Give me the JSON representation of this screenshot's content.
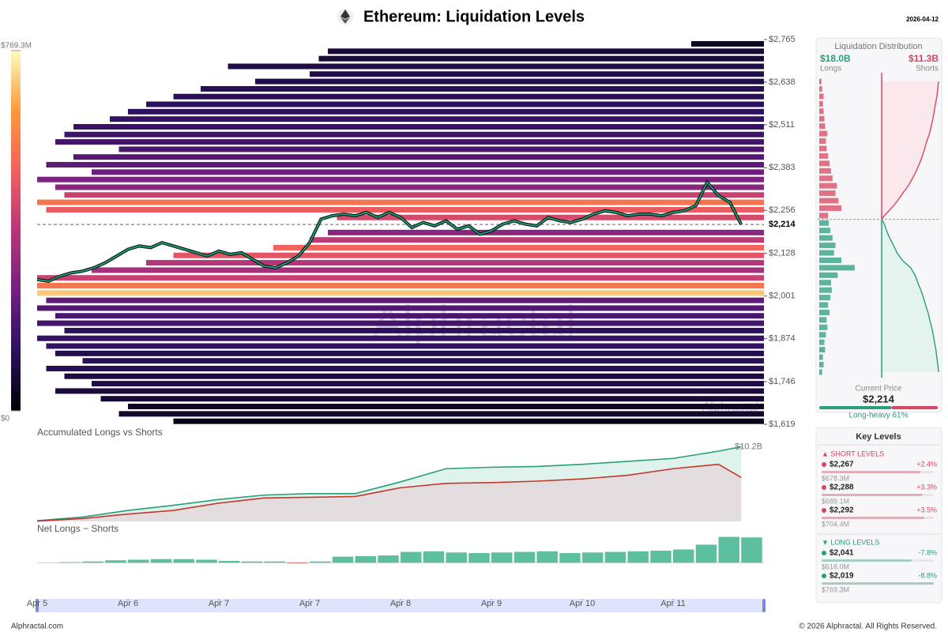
{
  "chart_data": [
    {
      "type": "heatmap",
      "title": "Ethereum: Liquidation Levels",
      "date": "2026-04-12",
      "watermark": "Alphractal",
      "xlim": [
        0,
        8
      ],
      "xticks": [
        {
          "value": 0,
          "label": "Apr 5"
        },
        {
          "value": 1,
          "label": "Apr 6"
        },
        {
          "value": 2,
          "label": "Apr 7"
        },
        {
          "value": 3,
          "label": "Apr 7"
        },
        {
          "value": 4,
          "label": "Apr 8"
        },
        {
          "value": 5,
          "label": "Apr 9"
        },
        {
          "value": 6,
          "label": "Apr 10"
        },
        {
          "value": 7,
          "label": "Apr 11"
        }
      ],
      "ylim": [
        1619,
        2765
      ],
      "yticks": [
        {
          "value": 2765,
          "label": "$2,765"
        },
        {
          "value": 2638,
          "label": "$2,638"
        },
        {
          "value": 2511,
          "label": "$2,511"
        },
        {
          "value": 2383,
          "label": "$2,383"
        },
        {
          "value": 2256,
          "label": "$2,256"
        },
        {
          "value": 2128,
          "label": "$2,128"
        },
        {
          "value": 2001,
          "label": "$2,001"
        },
        {
          "value": 1874,
          "label": "$1,874"
        },
        {
          "value": 1746,
          "label": "$1,746"
        },
        {
          "value": 1619,
          "label": "$1,619"
        }
      ],
      "colorlim": [
        0,
        769.3
      ],
      "colorticks": [
        {
          "value": 769.3,
          "label": "$769.3M"
        },
        {
          "value": 0,
          "label": "$0"
        }
      ],
      "colorscale": [
        "#000004",
        "#2c115f",
        "#721f81",
        "#b73779",
        "#f1605d",
        "#fd9a3b",
        "#fcfdbf"
      ],
      "bands": {
        "price": [
          1628,
          1650,
          1672,
          1695,
          1718,
          1740,
          1762,
          1785,
          1808,
          1830,
          1852,
          1875,
          1898,
          1920,
          1942,
          1965,
          1988,
          2010,
          2032,
          2055,
          2078,
          2100,
          2122,
          2145,
          2168,
          2190,
          2235,
          2258,
          2280,
          2302,
          2325,
          2348,
          2370,
          2392,
          2415,
          2438,
          2460,
          2482,
          2505,
          2528,
          2550,
          2572,
          2595,
          2618,
          2640,
          2662,
          2685,
          2708,
          2730,
          2752
        ],
        "start": [
          1.5,
          0.9,
          1.0,
          0.7,
          0.2,
          0.6,
          0.3,
          0.1,
          0.5,
          0.2,
          0.1,
          0,
          0.3,
          0,
          0.2,
          0,
          0.1,
          0,
          0,
          0,
          0.6,
          1.2,
          1.5,
          2.6,
          3.0,
          3.2,
          3.3,
          0.1,
          0,
          0.3,
          0.2,
          0,
          0.6,
          0.1,
          0.4,
          0.9,
          0.2,
          0.3,
          0.4,
          0.8,
          1.0,
          1.2,
          1.5,
          1.8,
          2.4,
          3.0,
          2.1,
          3.1,
          3.2,
          7.2
        ],
        "value": [
          30,
          60,
          45,
          70,
          80,
          90,
          85,
          110,
          120,
          100,
          140,
          150,
          130,
          170,
          180,
          200,
          220,
          700,
          560,
          420,
          350,
          380,
          480,
          520,
          400,
          300,
          450,
          500,
          560,
          420,
          300,
          280,
          250,
          220,
          200,
          190,
          170,
          160,
          150,
          140,
          130,
          125,
          120,
          110,
          100,
          95,
          90,
          80,
          70,
          40
        ]
      },
      "price": {
        "color": "#16a37b",
        "x": [
          0,
          0.125,
          0.25,
          0.375,
          0.5,
          0.625,
          0.75,
          0.875,
          1,
          1.125,
          1.25,
          1.375,
          1.5,
          1.625,
          1.75,
          1.875,
          2,
          2.125,
          2.25,
          2.375,
          2.5,
          2.625,
          2.75,
          2.875,
          3,
          3.125,
          3.25,
          3.375,
          3.5,
          3.625,
          3.75,
          3.875,
          4,
          4.125,
          4.25,
          4.375,
          4.5,
          4.625,
          4.75,
          4.875,
          5,
          5.125,
          5.25,
          5.375,
          5.5,
          5.625,
          5.75,
          5.875,
          6,
          6.125,
          6.25,
          6.375,
          6.5,
          6.625,
          6.75,
          6.875,
          7,
          7.125,
          7.25,
          7.375,
          7.5,
          7.625,
          7.75
        ],
        "values": [
          2050,
          2045,
          2060,
          2070,
          2075,
          2085,
          2100,
          2120,
          2140,
          2150,
          2145,
          2160,
          2150,
          2140,
          2130,
          2120,
          2135,
          2125,
          2130,
          2110,
          2090,
          2085,
          2100,
          2120,
          2160,
          2230,
          2240,
          2245,
          2240,
          2250,
          2235,
          2250,
          2235,
          2205,
          2220,
          2210,
          2225,
          2200,
          2210,
          2185,
          2195,
          2215,
          2225,
          2215,
          2210,
          2235,
          2225,
          2220,
          2230,
          2245,
          2255,
          2250,
          2240,
          2245,
          2245,
          2240,
          2250,
          2255,
          2270,
          2340,
          2300,
          2280,
          2214
        ]
      },
      "current_price": {
        "value": 2214,
        "label": "$2,214"
      }
    },
    {
      "type": "area",
      "title": "Accumulated Longs vs Shorts",
      "x": [
        0,
        0.5,
        1,
        1.5,
        2,
        2.5,
        3,
        3.5,
        4,
        4.5,
        5,
        5.5,
        6,
        6.5,
        7,
        7.5,
        7.75
      ],
      "xlim": [
        0,
        8
      ],
      "ylim": [
        0,
        11
      ],
      "yticks": [
        {
          "value": 10.2,
          "label": "$10.2B"
        }
      ],
      "series": [
        {
          "color": "#2a9d7c",
          "fill": "#dff2ec",
          "values": [
            0.1,
            0.6,
            1.5,
            2.2,
            3.0,
            3.6,
            3.8,
            3.8,
            5.4,
            7.2,
            7.4,
            7.5,
            7.8,
            8.2,
            8.6,
            9.6,
            10.2
          ]
        },
        {
          "color": "#c0392b",
          "fill": "#e4dddf",
          "values": [
            0.05,
            0.4,
            1.0,
            1.5,
            2.5,
            3.2,
            3.3,
            3.4,
            4.6,
            5.2,
            5.3,
            5.5,
            5.8,
            6.3,
            7.2,
            7.8,
            6.0
          ]
        }
      ]
    },
    {
      "type": "bar",
      "title": "Net Longs − Shorts",
      "x": [
        0,
        0.25,
        0.5,
        0.75,
        1,
        1.25,
        1.5,
        1.75,
        2,
        2.25,
        2.5,
        2.75,
        3,
        3.25,
        3.5,
        3.75,
        4,
        4.25,
        4.5,
        4.75,
        5,
        5.25,
        5.5,
        5.75,
        6,
        6.25,
        6.5,
        6.75,
        7,
        7.25,
        7.5,
        7.75
      ],
      "xlim": [
        0,
        8
      ],
      "ylim": [
        -0.5,
        4.5
      ],
      "color": "#5cc0a0",
      "negative_color": "#d9534f",
      "values": [
        0,
        0.1,
        0.2,
        0.4,
        0.5,
        0.6,
        0.6,
        0.5,
        0.3,
        0.2,
        0.2,
        -0.1,
        0.2,
        1.0,
        1.1,
        1.2,
        1.8,
        1.9,
        1.7,
        1.6,
        1.7,
        1.8,
        1.9,
        1.6,
        1.7,
        1.8,
        1.9,
        2.0,
        2.2,
        3.0,
        4.3,
        4.2
      ]
    }
  ],
  "distribution": {
    "title": "Liquidation Distribution",
    "longs": {
      "total": "$18.0B",
      "label": "Longs",
      "color": "#2a9d7c"
    },
    "shorts": {
      "total": "$11.3B",
      "label": "Shorts",
      "color": "#d9455f"
    },
    "levels": [
      1640,
      1668,
      1696,
      1724,
      1752,
      1780,
      1808,
      1836,
      1864,
      1892,
      1920,
      1948,
      1976,
      2004,
      2032,
      2060,
      2088,
      2116,
      2144,
      2172,
      2200,
      2228,
      2256,
      2284,
      2312,
      2340,
      2368,
      2396,
      2424,
      2452,
      2480,
      2508,
      2536,
      2564,
      2592,
      2620,
      2648,
      2676,
      2704,
      2732
    ],
    "amounts": [
      40,
      60,
      50,
      80,
      70,
      90,
      110,
      100,
      140,
      120,
      150,
      170,
      160,
      250,
      480,
      300,
      200,
      220,
      180,
      150,
      130,
      120,
      300,
      260,
      220,
      240,
      180,
      160,
      140,
      120,
      100,
      90,
      110,
      80,
      70,
      60,
      50,
      60,
      40,
      30
    ],
    "current_label": "Current Price",
    "balance": {
      "value": 61,
      "label": "Long-heavy 61%"
    }
  },
  "key_levels": {
    "title": "Key Levels",
    "short_title": "▲ SHORT LEVELS",
    "long_title": "▼ LONG LEVELS",
    "short": [
      {
        "price": "$2,267",
        "change": "+2.4%",
        "amount": 678.3,
        "amount_label": "$678.3M"
      },
      {
        "price": "$2,288",
        "change": "+3.3%",
        "amount": 689.1,
        "amount_label": "$689.1M"
      },
      {
        "price": "$2,292",
        "change": "+3.5%",
        "amount": 704.4,
        "amount_label": "$704.4M"
      }
    ],
    "long": [
      {
        "price": "$2,041",
        "change": "-7.8%",
        "amount": 618.0,
        "amount_label": "$618.0M"
      },
      {
        "price": "$2,019",
        "change": "-8.8%",
        "amount": 769.3,
        "amount_label": "$769.3M"
      }
    ]
  },
  "footer": {
    "site": "Alphractal.com",
    "copyright": "© 2026 Alphractal. All Rights Reserved."
  }
}
